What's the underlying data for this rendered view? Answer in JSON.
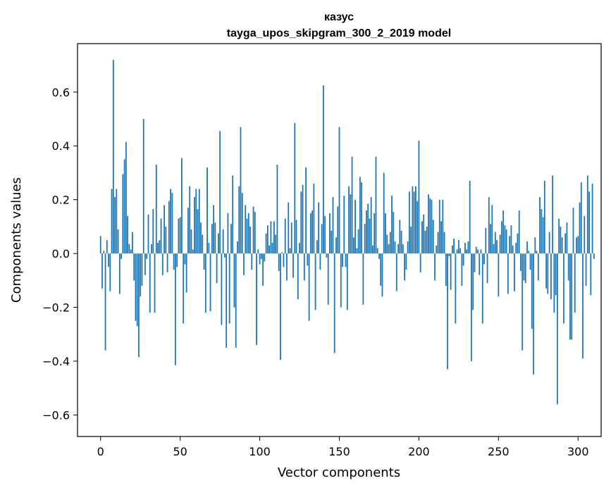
{
  "chart_data": {
    "type": "bar",
    "title": "казус",
    "subtitle": "tayga_upos_skipgram_300_2_2019 model",
    "xlabel": "Vector components",
    "ylabel": "Components values",
    "xlim": [
      -14.5,
      314.5
    ],
    "ylim": [
      -0.68,
      0.78
    ],
    "xticks": [
      0,
      50,
      100,
      150,
      200,
      250,
      300
    ],
    "xtick_labels": [
      "0",
      "50",
      "100",
      "150",
      "200",
      "250",
      "300"
    ],
    "yticks": [
      -0.6,
      -0.4,
      -0.2,
      0.0,
      0.2,
      0.4,
      0.6
    ],
    "ytick_labels": [
      "−0.6",
      "−0.4",
      "−0.2",
      "0.0",
      "0.2",
      "0.4",
      "0.6"
    ],
    "grid": false,
    "bar_color": "#1f77b4",
    "values": [
      0.065,
      -0.13,
      0.01,
      -0.36,
      0.05,
      -0.05,
      -0.14,
      0.24,
      0.72,
      0.21,
      0.24,
      0.09,
      -0.15,
      -0.02,
      0.295,
      0.35,
      0.415,
      0.14,
      0.035,
      0.015,
      0.08,
      -0.1,
      -0.25,
      -0.27,
      -0.385,
      -0.16,
      -0.12,
      0.5,
      -0.08,
      -0.02,
      0.145,
      -0.22,
      0.035,
      0.165,
      -0.22,
      0.33,
      0.04,
      0.05,
      0.13,
      -0.08,
      0.18,
      0.1,
      -0.07,
      0.195,
      0.24,
      0.225,
      -0.06,
      -0.415,
      -0.05,
      0.13,
      0.135,
      0.355,
      -0.26,
      -0.04,
      -0.145,
      0.17,
      0.25,
      0.09,
      0.015,
      0.21,
      0.24,
      0.165,
      0.24,
      0.115,
      0.07,
      -0.06,
      -0.22,
      0.32,
      0.04,
      -0.215,
      0.11,
      0.18,
      0.115,
      -0.11,
      0.075,
      0.455,
      -0.265,
      0.09,
      -0.015,
      -0.35,
      0.15,
      -0.26,
      0.11,
      0.29,
      -0.2,
      -0.35,
      0.045,
      0.25,
      0.47,
      0.225,
      -0.08,
      0.18,
      0.13,
      0.15,
      0.1,
      -0.06,
      0.175,
      0.155,
      -0.34,
      0.015,
      -0.04,
      -0.02,
      -0.12,
      -0.03,
      0.075,
      0.105,
      0.03,
      0.12,
      0.04,
      0.12,
      0.07,
      0.33,
      -0.065,
      -0.395,
      0.005,
      -0.05,
      0.13,
      -0.1,
      0.19,
      0.02,
      0.115,
      -0.09,
      0.485,
      0.125,
      -0.17,
      0.04,
      0.23,
      0.255,
      -0.1,
      0.32,
      -0.045,
      -0.25,
      0.15,
      0.16,
      0.26,
      -0.21,
      0.05,
      0.19,
      -0.06,
      0.11,
      0.625,
      0.14,
      -0.015,
      -0.19,
      0.15,
      0.085,
      0.21,
      -0.37,
      0.06,
      0.175,
      0.47,
      -0.2,
      -0.05,
      0.215,
      -0.05,
      -0.21,
      0.25,
      0.22,
      0.36,
      0.06,
      0.2,
      0.02,
      0.09,
      0.285,
      0.265,
      -0.19,
      0.11,
      0.16,
      0.185,
      0.13,
      0.21,
      0.03,
      0.15,
      0.36,
      0.02,
      -0.02,
      -0.12,
      -0.16,
      0.3,
      0.15,
      0.07,
      0.035,
      0.08,
      0.215,
      0.155,
      0.045,
      -0.14,
      0.035,
      0.125,
      0.085,
      0.035,
      -0.1,
      -0.06,
      0.045,
      0.23,
      0.1,
      0.25,
      0.23,
      0.25,
      0.195,
      0.42,
      -0.07,
      0.12,
      0.145,
      0.085,
      0.1,
      0.22,
      0.205,
      0.2,
      0.125,
      -0.1,
      0.03,
      0.08,
      0.2,
      0.12,
      0.2,
      0.08,
      -0.12,
      -0.43,
      -0.01,
      -0.135,
      0.03,
      0.055,
      -0.26,
      0.015,
      0.05,
      0.02,
      -0.12,
      -0.045,
      0.04,
      0.015,
      0.045,
      0.27,
      -0.4,
      -0.21,
      -0.07,
      0.025,
      0.015,
      -0.08,
      0.015,
      -0.26,
      -0.04,
      0.095,
      -0.11,
      0.21,
      0.11,
      0.18,
      0.035,
      0.08,
      0.05,
      -0.16,
      0.07,
      0.12,
      0.16,
      0.105,
      0.09,
      -0.15,
      0.065,
      0.105,
      0.03,
      -0.14,
      0.04,
      0.075,
      0.16,
      -0.065,
      -0.36,
      -0.1,
      -0.11,
      0.045,
      0.01,
      -0.06,
      -0.28,
      -0.45,
      0.06,
      0.01,
      -0.1,
      0.21,
      0.165,
      0.135,
      0.27,
      -0.13,
      -0.15,
      0.08,
      -0.17,
      0.29,
      -0.22,
      -0.155,
      -0.56,
      0.13,
      0.1,
      0.06,
      -0.26,
      0.075,
      0.115,
      -0.1,
      -0.32,
      -0.32,
      0.17,
      -0.22,
      0.06,
      0.065,
      0.19,
      0.265,
      -0.39,
      0.14,
      -0.12,
      0.29,
      0.23,
      -0.155,
      0.26,
      -0.02
    ]
  }
}
